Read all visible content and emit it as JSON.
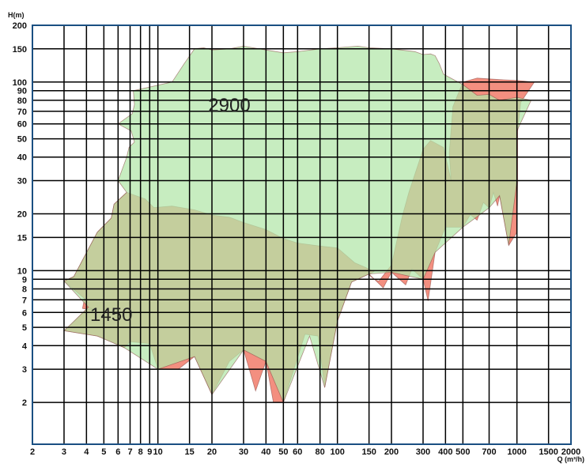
{
  "chart_data": {
    "type": "area",
    "title": "",
    "xlabel": "Q (m³/h)",
    "ylabel": "H(m)",
    "x_scale": "log",
    "y_scale": "log",
    "xlim": [
      2,
      2000
    ],
    "ylim": [
      1.2,
      200
    ],
    "grid": true,
    "x_ticks": [
      {
        "value": 2,
        "label": "2"
      },
      {
        "value": 3,
        "label": "3"
      },
      {
        "value": 4,
        "label": "4"
      },
      {
        "value": 5,
        "label": "5"
      },
      {
        "value": 6,
        "label": "6"
      },
      {
        "value": 7,
        "label": "7"
      },
      {
        "value": 8,
        "label": "8"
      },
      {
        "value": 9,
        "label": "9"
      },
      {
        "value": 10,
        "label": "10"
      },
      {
        "value": 15,
        "label": "15"
      },
      {
        "value": 20,
        "label": "20"
      },
      {
        "value": 30,
        "label": "30"
      },
      {
        "value": 40,
        "label": "40"
      },
      {
        "value": 50,
        "label": "50"
      },
      {
        "value": 60,
        "label": "60"
      },
      {
        "value": 80,
        "label": "80"
      },
      {
        "value": 100,
        "label": "100"
      },
      {
        "value": 150,
        "label": "150"
      },
      {
        "value": 200,
        "label": "200"
      },
      {
        "value": 300,
        "label": "300"
      },
      {
        "value": 400,
        "label": "400"
      },
      {
        "value": 500,
        "label": "500"
      },
      {
        "value": 700,
        "label": "700"
      },
      {
        "value": 1000,
        "label": "1000"
      },
      {
        "value": 1500,
        "label": "1500"
      },
      {
        "value": 2000,
        "label": "2000"
      }
    ],
    "y_ticks": [
      {
        "value": 2,
        "label": "2"
      },
      {
        "value": 3,
        "label": "3"
      },
      {
        "value": 4,
        "label": "4"
      },
      {
        "value": 5,
        "label": "5"
      },
      {
        "value": 6,
        "label": "6"
      },
      {
        "value": 7,
        "label": "7"
      },
      {
        "value": 8,
        "label": "8"
      },
      {
        "value": 9,
        "label": "9"
      },
      {
        "value": 10,
        "label": "10"
      },
      {
        "value": 15,
        "label": "15"
      },
      {
        "value": 20,
        "label": "20"
      },
      {
        "value": 30,
        "label": "30"
      },
      {
        "value": 40,
        "label": "40"
      },
      {
        "value": 50,
        "label": "50"
      },
      {
        "value": 60,
        "label": "60"
      },
      {
        "value": 70,
        "label": "70"
      },
      {
        "value": 80,
        "label": "80"
      },
      {
        "value": 90,
        "label": "90"
      },
      {
        "value": 100,
        "label": "100"
      },
      {
        "value": 150,
        "label": "150"
      },
      {
        "value": 200,
        "label": "200"
      }
    ],
    "series": [
      {
        "name": "1450",
        "color": "#f38f80",
        "label_at": [
          5.5,
          5.4
        ],
        "polygon": [
          [
            3.4,
            9.3
          ],
          [
            4.6,
            16
          ],
          [
            5.5,
            19
          ],
          [
            5.7,
            22.5
          ],
          [
            6.7,
            26
          ],
          [
            8.5,
            24
          ],
          [
            9.5,
            21.6
          ],
          [
            12,
            22
          ],
          [
            16,
            21
          ],
          [
            20,
            19.7
          ],
          [
            25,
            19.2
          ],
          [
            30,
            18
          ],
          [
            40,
            16.5
          ],
          [
            50,
            14.8
          ],
          [
            60,
            14
          ],
          [
            80,
            13.5
          ],
          [
            100,
            13.2
          ],
          [
            125,
            11
          ],
          [
            140,
            10.5
          ],
          [
            160,
            9.9
          ],
          [
            150,
            9.5
          ],
          [
            160,
            9.0
          ],
          [
            170,
            8.8
          ],
          [
            200,
            10.7
          ],
          [
            230,
            19.5
          ],
          [
            250,
            26
          ],
          [
            280,
            36
          ],
          [
            300,
            44
          ],
          [
            330,
            49
          ],
          [
            390,
            45
          ],
          [
            430,
            30
          ],
          [
            420,
            42
          ],
          [
            440,
            74
          ],
          [
            500,
            100
          ],
          [
            600,
            105
          ],
          [
            800,
            103
          ],
          [
            1000,
            102
          ],
          [
            1250,
            100
          ],
          [
            1050,
            78
          ],
          [
            1010,
            55
          ],
          [
            1010,
            30
          ],
          [
            1000,
            16
          ],
          [
            900,
            13.6
          ],
          [
            800,
            25
          ],
          [
            780,
            22
          ],
          [
            740,
            26
          ],
          [
            700,
            21.5
          ],
          [
            650,
            23
          ],
          [
            600,
            18.5
          ],
          [
            550,
            19.8
          ],
          [
            500,
            17
          ],
          [
            400,
            17
          ],
          [
            350,
            12.5
          ],
          [
            320,
            6.9
          ],
          [
            300,
            9
          ],
          [
            260,
            10.2
          ],
          [
            240,
            8.4
          ],
          [
            200,
            9.8
          ],
          [
            180,
            8.1
          ],
          [
            150,
            9.6
          ],
          [
            120,
            8.7
          ],
          [
            100,
            5.4
          ],
          [
            85,
            2.4
          ],
          [
            78,
            4.5
          ],
          [
            66,
            4.6
          ],
          [
            50,
            2.0
          ],
          [
            44,
            2.0
          ],
          [
            40,
            3.3
          ],
          [
            35,
            2.3
          ],
          [
            30,
            3.8
          ],
          [
            25,
            3.3
          ],
          [
            20,
            2.2
          ],
          [
            16,
            3.5
          ],
          [
            13,
            3.0
          ],
          [
            10,
            3.0
          ],
          [
            9,
            4.1
          ],
          [
            7,
            4.2
          ],
          [
            6.5,
            3.9
          ],
          [
            5.5,
            4.2
          ],
          [
            4.6,
            4.5
          ],
          [
            3.0,
            4.8
          ],
          [
            3.3,
            5.2
          ],
          [
            4.1,
            6.4
          ],
          [
            4.6,
            6.1
          ],
          [
            3.8,
            6.3
          ],
          [
            3.9,
            7.1
          ],
          [
            3.0,
            8.8
          ]
        ]
      },
      {
        "name": "2900",
        "color": "#b1e6a8",
        "label_at": [
          25,
          70
        ],
        "polygon": [
          [
            6.0,
            30
          ],
          [
            6.7,
            40
          ],
          [
            6.9,
            45
          ],
          [
            7.4,
            48
          ],
          [
            7.1,
            55
          ],
          [
            6.0,
            60
          ],
          [
            7.2,
            68
          ],
          [
            7.4,
            76
          ],
          [
            7.3,
            90
          ],
          [
            12,
            100
          ],
          [
            14,
            125
          ],
          [
            16,
            150
          ],
          [
            18,
            152
          ],
          [
            20,
            148
          ],
          [
            25,
            150
          ],
          [
            30,
            155
          ],
          [
            40,
            148
          ],
          [
            50,
            143
          ],
          [
            60,
            145
          ],
          [
            80,
            150
          ],
          [
            100,
            152
          ],
          [
            130,
            155
          ],
          [
            150,
            152
          ],
          [
            200,
            150
          ],
          [
            270,
            145
          ],
          [
            300,
            140
          ],
          [
            330,
            141
          ],
          [
            350,
            138
          ],
          [
            370,
            125
          ],
          [
            390,
            110
          ],
          [
            500,
            97
          ],
          [
            600,
            85
          ],
          [
            700,
            86
          ],
          [
            800,
            80
          ],
          [
            1000,
            83
          ],
          [
            1200,
            80
          ],
          [
            1000,
            55
          ],
          [
            1000,
            30
          ],
          [
            900,
            13.6
          ],
          [
            800,
            25
          ],
          [
            700,
            21.5
          ],
          [
            500,
            17
          ],
          [
            350,
            12.5
          ],
          [
            300,
            9
          ],
          [
            200,
            9.8
          ],
          [
            150,
            9.6
          ],
          [
            120,
            8.7
          ],
          [
            100,
            5.4
          ],
          [
            85,
            2.4
          ],
          [
            70,
            4.5
          ],
          [
            50,
            2.0
          ],
          [
            40,
            3.3
          ],
          [
            30,
            3.8
          ],
          [
            20,
            2.2
          ],
          [
            16,
            3.5
          ],
          [
            10,
            3.0
          ],
          [
            6.5,
            3.9
          ],
          [
            4.6,
            4.5
          ],
          [
            3.0,
            4.8
          ],
          [
            4.1,
            6.4
          ],
          [
            3.0,
            8.8
          ],
          [
            3.4,
            9.3
          ],
          [
            4.6,
            16
          ],
          [
            5.5,
            19
          ],
          [
            5.7,
            22.5
          ],
          [
            6.7,
            26
          ]
        ]
      }
    ]
  }
}
